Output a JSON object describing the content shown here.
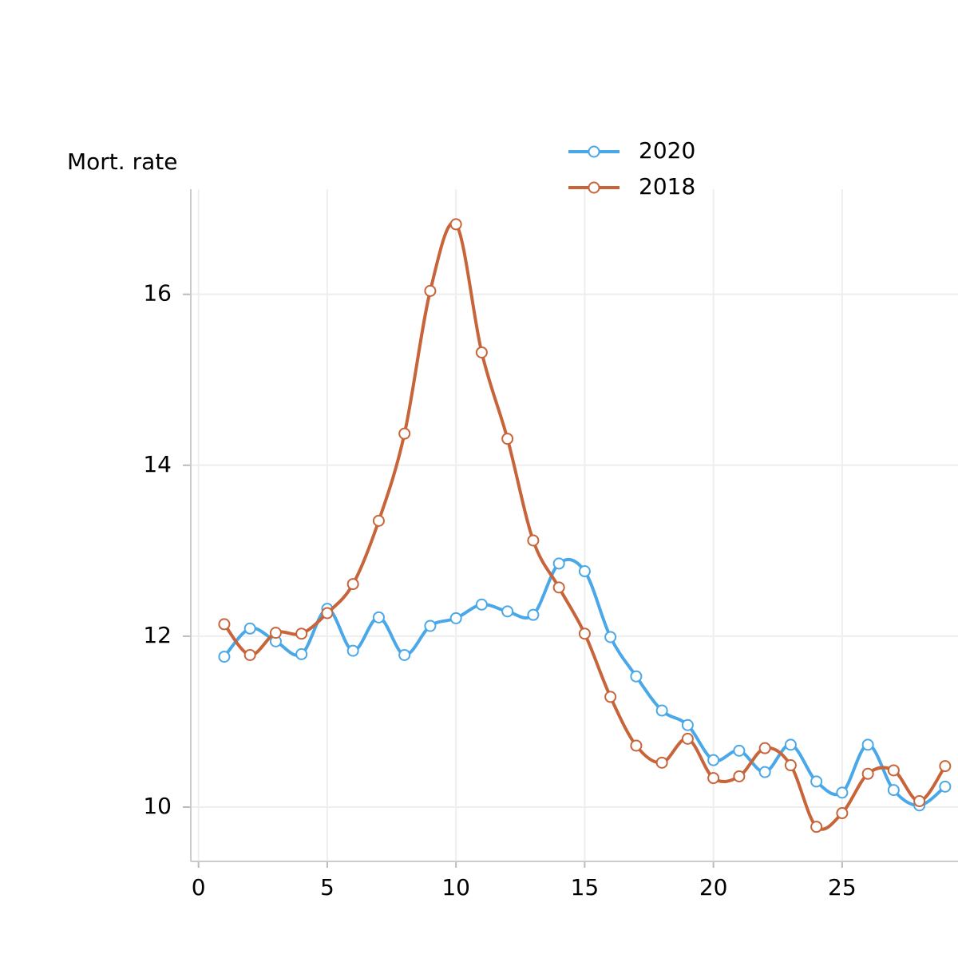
{
  "chart_data": {
    "type": "line",
    "y_label": "Mort. rate",
    "x": [
      1,
      2,
      3,
      4,
      5,
      6,
      7,
      8,
      9,
      10,
      11,
      12,
      13,
      14,
      15,
      16,
      17,
      18,
      19,
      20,
      21,
      22,
      23,
      24,
      25,
      26,
      27,
      28,
      29
    ],
    "series": [
      {
        "name": "2020",
        "color": "#4aa8e8",
        "values": [
          11.76,
          12.09,
          11.94,
          11.79,
          12.32,
          11.83,
          12.22,
          11.78,
          12.12,
          12.21,
          12.37,
          12.29,
          12.25,
          12.85,
          12.76,
          11.99,
          11.53,
          11.13,
          10.96,
          10.55,
          10.66,
          10.41,
          10.73,
          10.3,
          10.17,
          10.73,
          10.2,
          10.02,
          10.24
        ]
      },
      {
        "name": "2018",
        "color": "#c8643a",
        "values": [
          12.14,
          11.78,
          12.04,
          12.03,
          12.27,
          12.61,
          13.35,
          14.37,
          16.04,
          16.82,
          15.32,
          14.31,
          13.12,
          12.57,
          12.03,
          11.29,
          10.72,
          10.52,
          10.8,
          10.34,
          10.36,
          10.69,
          10.49,
          9.77,
          9.93,
          10.39,
          10.43,
          10.07,
          10.48
        ]
      }
    ],
    "xlim": [
      -0.3,
      29.5
    ],
    "xticks": [
      0,
      5,
      10,
      15,
      20,
      25
    ],
    "ylim": [
      9.365,
      17.23
    ],
    "yticks": [
      10,
      12,
      14,
      16
    ],
    "grid": true,
    "legend": "top",
    "smooth": true
  }
}
